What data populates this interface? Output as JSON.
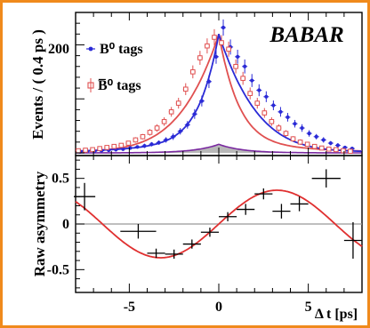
{
  "chart_data": [
    {
      "type": "scatter",
      "ylabel": "Events / ( 0.4 ps )",
      "yticks": [
        200
      ],
      "ylim": [
        0,
        260
      ],
      "xlim": [
        -8,
        8
      ],
      "logo": "BABAR",
      "legend": [
        {
          "label": "B⁰ tags",
          "color": "#2a2ad6",
          "marker": "filled-circle"
        },
        {
          "label": "B̅⁰ tags",
          "color": "#e05050",
          "marker": "open-square"
        }
      ],
      "series": [
        {
          "name": "B⁰ tags",
          "color": "#2a2ad6",
          "x": [
            -7.8,
            -7.4,
            -7.0,
            -6.6,
            -6.2,
            -5.8,
            -5.4,
            -5.0,
            -4.6,
            -4.2,
            -3.8,
            -3.4,
            -3.0,
            -2.6,
            -2.2,
            -1.8,
            -1.4,
            -1.0,
            -0.6,
            -0.2,
            0.2,
            0.6,
            1.0,
            1.4,
            1.8,
            2.2,
            2.6,
            3.0,
            3.4,
            3.8,
            4.2,
            4.6,
            5.0,
            5.4,
            5.8,
            6.2,
            6.6,
            7.0,
            7.4
          ],
          "y": [
            2,
            3,
            3,
            4,
            5,
            6,
            7,
            9,
            11,
            13,
            16,
            19,
            24,
            30,
            40,
            52,
            72,
            96,
            132,
            178,
            232,
            196,
            178,
            160,
            134,
            116,
            104,
            88,
            76,
            66,
            54,
            46,
            36,
            30,
            24,
            18,
            14,
            10,
            8
          ],
          "err": [
            2,
            2,
            2,
            2,
            2,
            3,
            3,
            3,
            3,
            4,
            4,
            4,
            5,
            6,
            6,
            7,
            9,
            10,
            12,
            13,
            15,
            14,
            13,
            13,
            12,
            11,
            10,
            9,
            9,
            8,
            7,
            7,
            6,
            5,
            5,
            4,
            4,
            3,
            3
          ]
        },
        {
          "name": "B̅⁰ tags",
          "color": "#e05050",
          "x": [
            -7.8,
            -7.4,
            -7.0,
            -6.6,
            -6.2,
            -5.8,
            -5.4,
            -5.0,
            -4.6,
            -4.2,
            -3.8,
            -3.4,
            -3.0,
            -2.6,
            -2.2,
            -1.8,
            -1.4,
            -1.0,
            -0.6,
            -0.2,
            0.2,
            0.6,
            1.0,
            1.4,
            1.8,
            2.2,
            2.6,
            3.0,
            3.4,
            3.8,
            4.2,
            4.6,
            5.0,
            5.4,
            5.8,
            6.2,
            6.6,
            7.0,
            7.4
          ],
          "y": [
            4,
            5,
            6,
            8,
            10,
            12,
            14,
            18,
            24,
            30,
            38,
            46,
            58,
            76,
            92,
            118,
            150,
            176,
            198,
            214,
            204,
            192,
            160,
            138,
            110,
            92,
            74,
            58,
            46,
            36,
            26,
            20,
            16,
            12,
            9,
            7,
            6,
            4,
            3
          ],
          "err": [
            2,
            2,
            2,
            3,
            3,
            3,
            4,
            4,
            5,
            5,
            6,
            7,
            8,
            9,
            10,
            11,
            12,
            13,
            14,
            15,
            14,
            14,
            13,
            12,
            11,
            10,
            9,
            8,
            7,
            6,
            5,
            5,
            4,
            4,
            3,
            3,
            2,
            2,
            2
          ]
        }
      ],
      "fits": [
        {
          "name": "B⁰ tags fit",
          "color": "#2a2ad6"
        },
        {
          "name": "B̅⁰ tags fit",
          "color": "#e05050"
        }
      ],
      "background_peak": 16
    },
    {
      "type": "scatter",
      "xlabel": "Δ t [ps]",
      "ylabel": "Raw asymmetry",
      "xticks": [
        -5,
        0,
        5
      ],
      "yticks": [
        0.5,
        0,
        -0.5
      ],
      "xlim": [
        -8,
        8
      ],
      "ylim": [
        -0.75,
        0.75
      ],
      "zero_line": true,
      "points": {
        "x": [
          -7.5,
          -4.5,
          -3.5,
          -2.5,
          -1.5,
          -0.5,
          0.5,
          1.5,
          2.5,
          3.5,
          4.5,
          6.0,
          7.5
        ],
        "y": [
          0.3,
          -0.08,
          -0.32,
          -0.33,
          -0.22,
          -0.09,
          0.08,
          0.16,
          0.33,
          0.14,
          0.22,
          0.5,
          -0.18
        ],
        "xerr": [
          0.6,
          1.0,
          0.5,
          0.5,
          0.5,
          0.5,
          0.5,
          0.5,
          0.5,
          0.5,
          0.5,
          0.8,
          0.5
        ],
        "yerr": [
          0.15,
          0.08,
          0.05,
          0.05,
          0.05,
          0.05,
          0.05,
          0.06,
          0.06,
          0.08,
          0.08,
          0.1,
          0.2
        ]
      },
      "fit": {
        "color": "#e03030",
        "amplitude": 0.37,
        "period_ps": 13.0
      }
    }
  ]
}
